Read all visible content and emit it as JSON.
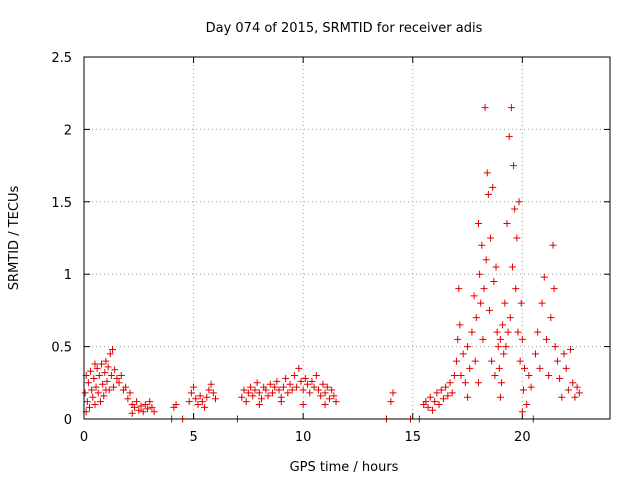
{
  "chart_data": {
    "type": "scatter",
    "title": "Day 074 of 2015, SRMTID for receiver adis",
    "xlabel": "GPS time / hours",
    "ylabel": "SRMTID / TECUs",
    "xlim": [
      0,
      24
    ],
    "ylim": [
      0,
      2.5
    ],
    "x_ticks": [
      0,
      5,
      10,
      15,
      20
    ],
    "x_tick_labels": [
      "0",
      "5",
      "10",
      "15",
      "20"
    ],
    "y_ticks": [
      0,
      0.5,
      1,
      1.5,
      2,
      2.5
    ],
    "y_tick_labels": [
      "0",
      "0.5",
      "1",
      "1.5",
      "2",
      "2.5"
    ],
    "grid": true,
    "marker": "+",
    "series_color": "#e00000",
    "series": [
      {
        "name": "SRMTID",
        "points": [
          [
            0.05,
            0.18
          ],
          [
            0.1,
            0.3
          ],
          [
            0.15,
            0.12
          ],
          [
            0.2,
            0.25
          ],
          [
            0.25,
            0.08
          ],
          [
            0.3,
            0.33
          ],
          [
            0.35,
            0.2
          ],
          [
            0.4,
            0.15
          ],
          [
            0.45,
            0.28
          ],
          [
            0.5,
            0.1
          ],
          [
            0.55,
            0.22
          ],
          [
            0.6,
            0.35
          ],
          [
            0.65,
            0.18
          ],
          [
            0.7,
            0.3
          ],
          [
            0.75,
            0.12
          ],
          [
            0.8,
            0.38
          ],
          [
            0.85,
            0.24
          ],
          [
            0.9,
            0.16
          ],
          [
            0.95,
            0.32
          ],
          [
            1.0,
            0.4
          ],
          [
            1.05,
            0.26
          ],
          [
            1.1,
            0.36
          ],
          [
            1.15,
            0.2
          ],
          [
            1.2,
            0.45
          ],
          [
            1.25,
            0.3
          ],
          [
            1.3,
            0.48
          ],
          [
            1.35,
            0.22
          ],
          [
            1.4,
            0.34
          ],
          [
            1.5,
            0.28
          ],
          [
            1.6,
            0.25
          ],
          [
            1.7,
            0.3
          ],
          [
            1.8,
            0.2
          ],
          [
            1.9,
            0.22
          ],
          [
            2.0,
            0.14
          ],
          [
            2.1,
            0.18
          ],
          [
            2.2,
            0.1
          ],
          [
            2.3,
            0.08
          ],
          [
            2.4,
            0.12
          ],
          [
            2.5,
            0.06
          ],
          [
            2.6,
            0.09
          ],
          [
            2.7,
            0.05
          ],
          [
            2.8,
            0.1
          ],
          [
            2.9,
            0.07
          ],
          [
            3.0,
            0.12
          ],
          [
            3.1,
            0.08
          ],
          [
            3.2,
            0.05
          ],
          [
            0.1,
            0.05
          ],
          [
            0.5,
            0.38
          ],
          [
            1.0,
            0.2
          ],
          [
            2.2,
            0.04
          ],
          [
            4.0,
            0.0
          ],
          [
            4.1,
            0.08
          ],
          [
            4.2,
            0.1
          ],
          [
            4.5,
            0.0
          ],
          [
            4.8,
            0.12
          ],
          [
            4.9,
            0.18
          ],
          [
            5.0,
            0.22
          ],
          [
            5.1,
            0.14
          ],
          [
            5.2,
            0.1
          ],
          [
            5.3,
            0.16
          ],
          [
            5.4,
            0.12
          ],
          [
            5.5,
            0.08
          ],
          [
            5.6,
            0.15
          ],
          [
            5.7,
            0.2
          ],
          [
            5.8,
            0.24
          ],
          [
            5.9,
            0.18
          ],
          [
            6.0,
            0.14
          ],
          [
            7.0,
            0.0
          ],
          [
            7.2,
            0.15
          ],
          [
            7.3,
            0.2
          ],
          [
            7.4,
            0.12
          ],
          [
            7.5,
            0.18
          ],
          [
            7.6,
            0.22
          ],
          [
            7.7,
            0.16
          ],
          [
            7.8,
            0.2
          ],
          [
            7.9,
            0.25
          ],
          [
            8.0,
            0.18
          ],
          [
            8.1,
            0.14
          ],
          [
            8.2,
            0.22
          ],
          [
            8.3,
            0.2
          ],
          [
            8.4,
            0.16
          ],
          [
            8.5,
            0.24
          ],
          [
            8.6,
            0.18
          ],
          [
            8.7,
            0.22
          ],
          [
            8.8,
            0.26
          ],
          [
            8.9,
            0.2
          ],
          [
            9.0,
            0.15
          ],
          [
            9.1,
            0.22
          ],
          [
            9.2,
            0.28
          ],
          [
            9.3,
            0.18
          ],
          [
            9.4,
            0.24
          ],
          [
            9.5,
            0.2
          ],
          [
            9.6,
            0.3
          ],
          [
            9.7,
            0.22
          ],
          [
            9.8,
            0.35
          ],
          [
            9.9,
            0.26
          ],
          [
            10.0,
            0.2
          ],
          [
            10.1,
            0.28
          ],
          [
            10.2,
            0.24
          ],
          [
            10.3,
            0.18
          ],
          [
            10.4,
            0.26
          ],
          [
            10.5,
            0.22
          ],
          [
            10.6,
            0.3
          ],
          [
            10.7,
            0.2
          ],
          [
            10.8,
            0.16
          ],
          [
            10.9,
            0.24
          ],
          [
            11.0,
            0.18
          ],
          [
            11.1,
            0.22
          ],
          [
            11.2,
            0.14
          ],
          [
            11.3,
            0.2
          ],
          [
            11.4,
            0.16
          ],
          [
            11.5,
            0.12
          ],
          [
            8.0,
            0.1
          ],
          [
            9.0,
            0.12
          ],
          [
            10.0,
            0.1
          ],
          [
            11.0,
            0.1
          ],
          [
            13.8,
            0.0
          ],
          [
            14.0,
            0.12
          ],
          [
            14.1,
            0.18
          ],
          [
            14.9,
            0.0
          ],
          [
            15.3,
            0.0
          ],
          [
            15.5,
            0.1
          ],
          [
            15.6,
            0.12
          ],
          [
            15.7,
            0.08
          ],
          [
            15.8,
            0.15
          ],
          [
            15.9,
            0.06
          ],
          [
            16.0,
            0.12
          ],
          [
            16.1,
            0.18
          ],
          [
            16.2,
            0.1
          ],
          [
            16.3,
            0.2
          ],
          [
            16.4,
            0.14
          ],
          [
            16.5,
            0.22
          ],
          [
            16.6,
            0.16
          ],
          [
            16.7,
            0.25
          ],
          [
            16.8,
            0.18
          ],
          [
            16.9,
            0.3
          ],
          [
            17.0,
            0.4
          ],
          [
            17.05,
            0.55
          ],
          [
            17.1,
            0.9
          ],
          [
            17.15,
            0.65
          ],
          [
            17.2,
            0.3
          ],
          [
            17.3,
            0.45
          ],
          [
            17.4,
            0.25
          ],
          [
            17.5,
            0.5
          ],
          [
            17.6,
            0.35
          ],
          [
            17.7,
            0.6
          ],
          [
            17.8,
            0.85
          ],
          [
            17.85,
            0.4
          ],
          [
            17.9,
            0.7
          ],
          [
            18.0,
            1.35
          ],
          [
            18.05,
            1.0
          ],
          [
            18.1,
            0.8
          ],
          [
            18.15,
            1.2
          ],
          [
            18.2,
            0.55
          ],
          [
            18.25,
            0.9
          ],
          [
            18.3,
            2.15
          ],
          [
            18.35,
            1.1
          ],
          [
            18.4,
            1.7
          ],
          [
            18.45,
            1.55
          ],
          [
            18.5,
            0.75
          ],
          [
            18.55,
            1.25
          ],
          [
            18.6,
            0.4
          ],
          [
            18.65,
            1.6
          ],
          [
            18.7,
            0.95
          ],
          [
            18.75,
            0.3
          ],
          [
            18.8,
            1.05
          ],
          [
            18.85,
            0.6
          ],
          [
            18.9,
            0.5
          ],
          [
            18.95,
            0.35
          ],
          [
            19.0,
            0.55
          ],
          [
            19.05,
            0.25
          ],
          [
            19.1,
            0.65
          ],
          [
            19.15,
            0.45
          ],
          [
            19.2,
            0.8
          ],
          [
            19.25,
            0.5
          ],
          [
            19.3,
            1.35
          ],
          [
            19.35,
            0.6
          ],
          [
            19.4,
            1.95
          ],
          [
            19.45,
            0.7
          ],
          [
            19.5,
            2.15
          ],
          [
            19.55,
            1.05
          ],
          [
            19.6,
            1.75
          ],
          [
            19.65,
            1.45
          ],
          [
            19.7,
            0.9
          ],
          [
            19.75,
            1.25
          ],
          [
            19.8,
            0.6
          ],
          [
            19.85,
            1.5
          ],
          [
            19.9,
            0.4
          ],
          [
            19.95,
            0.8
          ],
          [
            20.0,
            0.55
          ],
          [
            20.05,
            0.2
          ],
          [
            20.1,
            0.35
          ],
          [
            20.2,
            0.1
          ],
          [
            20.3,
            0.3
          ],
          [
            20.4,
            0.22
          ],
          [
            20.5,
            0.0
          ],
          [
            20.6,
            0.45
          ],
          [
            20.7,
            0.6
          ],
          [
            20.8,
            0.35
          ],
          [
            20.9,
            0.8
          ],
          [
            21.0,
            0.98
          ],
          [
            21.1,
            0.55
          ],
          [
            21.2,
            0.3
          ],
          [
            21.3,
            0.7
          ],
          [
            21.4,
            1.2
          ],
          [
            21.45,
            0.9
          ],
          [
            21.5,
            0.5
          ],
          [
            21.6,
            0.4
          ],
          [
            21.7,
            0.28
          ],
          [
            21.8,
            0.15
          ],
          [
            21.9,
            0.45
          ],
          [
            22.0,
            0.35
          ],
          [
            22.1,
            0.2
          ],
          [
            22.2,
            0.48
          ],
          [
            22.3,
            0.25
          ],
          [
            22.4,
            0.15
          ],
          [
            22.5,
            0.22
          ],
          [
            22.6,
            0.18
          ],
          [
            17.5,
            0.15
          ],
          [
            18.0,
            0.25
          ],
          [
            19.0,
            0.15
          ],
          [
            20.0,
            0.05
          ]
        ]
      }
    ]
  }
}
